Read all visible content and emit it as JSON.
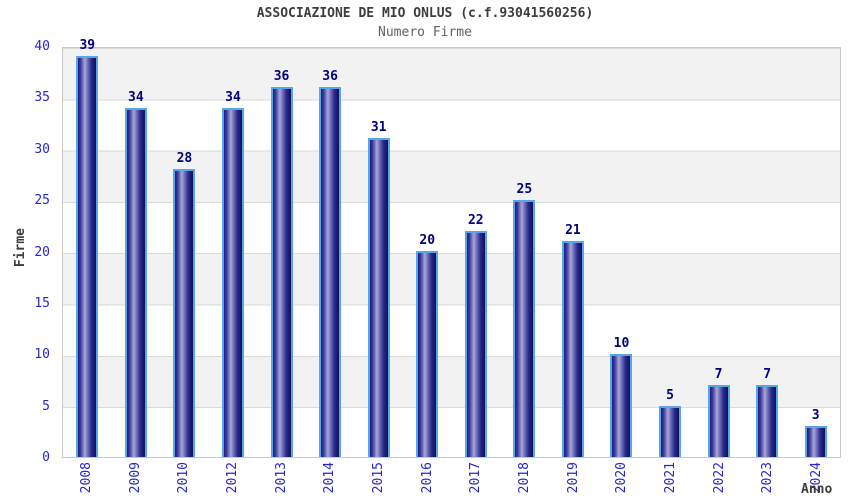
{
  "title": "ASSOCIAZIONE DE MIO ONLUS (c.f.93041560256)",
  "subtitle": "Numero Firme",
  "chart_data": {
    "type": "bar",
    "title": "ASSOCIAZIONE DE MIO ONLUS (c.f.93041560256)",
    "subtitle": "Numero Firme",
    "categories": [
      "2008",
      "2009",
      "2010",
      "2012",
      "2013",
      "2014",
      "2015",
      "2016",
      "2017",
      "2018",
      "2019",
      "2020",
      "2021",
      "2022",
      "2023",
      "2024"
    ],
    "values": [
      39,
      34,
      28,
      34,
      36,
      36,
      31,
      20,
      22,
      25,
      21,
      10,
      5,
      7,
      7,
      3
    ],
    "xlabel": "Anno",
    "ylabel": "Firme",
    "ylim": [
      0,
      40
    ],
    "yticks": [
      0,
      5,
      10,
      15,
      20,
      25,
      30,
      35,
      40
    ],
    "grid": "horizontal-bands",
    "legend": "none",
    "colors": {
      "bar_dark": "#10105c",
      "bar_light": "#a8a8d4",
      "bar_border": "#58a6e8",
      "value_label": "#000082",
      "axis_tick_text": "#2727cf",
      "axis_title_text": "#3d3d3d",
      "band": "#f2f2f2",
      "gridline": "#dadada",
      "plot_border": "#c9c9c9"
    }
  }
}
